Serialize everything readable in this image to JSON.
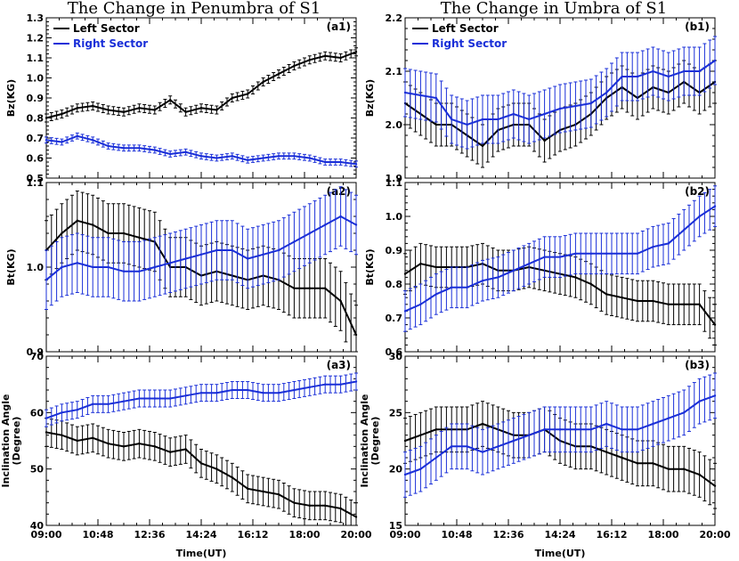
{
  "titles": {
    "left": "The Change in Penumbra of S1",
    "right": "The Change in Umbra of S1"
  },
  "colors": {
    "left_sector": "#000000",
    "right_sector": "#1a2fd8"
  },
  "legend": [
    "Left Sector",
    "Right Sector"
  ],
  "xlabel": "Time(UT)",
  "chart_data": [
    {
      "id": "a1",
      "type": "line",
      "label": "(a1)",
      "ylabel": "Bz(KG)",
      "ylim": [
        0.5,
        1.3
      ],
      "yticks": [
        "0.5",
        "0.6",
        "0.7",
        "0.8",
        "0.9",
        "1.0",
        "1.1",
        "1.2",
        "1.3"
      ],
      "xticks": [],
      "legend": [
        "Left Sector",
        "Right Sector"
      ],
      "series": [
        {
          "name": "Left Sector",
          "color": "#000000",
          "err": 0.02,
          "x": [
            0,
            0.05,
            0.1,
            0.15,
            0.2,
            0.25,
            0.3,
            0.35,
            0.4,
            0.45,
            0.5,
            0.55,
            0.6,
            0.65,
            0.7,
            0.75,
            0.8,
            0.85,
            0.9,
            0.95,
            1.0
          ],
          "y": [
            0.8,
            0.82,
            0.85,
            0.86,
            0.84,
            0.83,
            0.85,
            0.84,
            0.89,
            0.83,
            0.85,
            0.84,
            0.9,
            0.92,
            0.98,
            1.02,
            1.06,
            1.09,
            1.11,
            1.1,
            1.13
          ]
        },
        {
          "name": "Right Sector",
          "color": "#1a2fd8",
          "err": 0.015,
          "x": [
            0,
            0.05,
            0.1,
            0.15,
            0.2,
            0.25,
            0.3,
            0.35,
            0.4,
            0.45,
            0.5,
            0.55,
            0.6,
            0.65,
            0.7,
            0.75,
            0.8,
            0.85,
            0.9,
            0.95,
            1.0
          ],
          "y": [
            0.69,
            0.68,
            0.71,
            0.69,
            0.66,
            0.65,
            0.65,
            0.64,
            0.62,
            0.63,
            0.61,
            0.6,
            0.61,
            0.59,
            0.6,
            0.61,
            0.61,
            0.6,
            0.58,
            0.58,
            0.57
          ]
        }
      ]
    },
    {
      "id": "a2",
      "type": "line",
      "label": "(a2)",
      "ylabel": "Bt(KG)",
      "ylim": [
        0.9,
        1.1
      ],
      "yticks": [
        "0.9",
        "1.0",
        "1.1"
      ],
      "xticks": [],
      "series": [
        {
          "name": "Left Sector",
          "color": "#000000",
          "err": 0.035,
          "x": [
            0,
            0.05,
            0.1,
            0.15,
            0.2,
            0.25,
            0.3,
            0.35,
            0.4,
            0.45,
            0.5,
            0.55,
            0.6,
            0.65,
            0.7,
            0.75,
            0.8,
            0.85,
            0.9,
            0.95,
            1.0
          ],
          "y": [
            1.02,
            1.04,
            1.055,
            1.05,
            1.04,
            1.04,
            1.035,
            1.03,
            1.0,
            1.0,
            0.99,
            0.995,
            0.99,
            0.985,
            0.99,
            0.985,
            0.975,
            0.975,
            0.975,
            0.96,
            0.92
          ]
        },
        {
          "name": "Right Sector",
          "color": "#1a2fd8",
          "err": 0.035,
          "x": [
            0,
            0.05,
            0.1,
            0.15,
            0.2,
            0.25,
            0.3,
            0.35,
            0.4,
            0.45,
            0.5,
            0.55,
            0.6,
            0.65,
            0.7,
            0.75,
            0.8,
            0.85,
            0.9,
            0.95,
            1.0
          ],
          "y": [
            0.985,
            1.0,
            1.005,
            1.0,
            1.0,
            0.995,
            0.995,
            1.0,
            1.005,
            1.01,
            1.015,
            1.02,
            1.02,
            1.01,
            1.015,
            1.02,
            1.03,
            1.04,
            1.05,
            1.06,
            1.05
          ]
        }
      ]
    },
    {
      "id": "a3",
      "type": "line",
      "label": "(a3)",
      "ylabel": [
        "Inclination Angle",
        "(Degree)"
      ],
      "ylim": [
        40,
        70
      ],
      "yticks": [
        "40",
        "50",
        "60",
        "70"
      ],
      "xticks": [
        "09:00",
        "10:48",
        "12:36",
        "14:24",
        "16:12",
        "18:00",
        "20:00"
      ],
      "series": [
        {
          "name": "Left Sector",
          "color": "#000000",
          "err": 2.5,
          "x": [
            0,
            0.05,
            0.1,
            0.15,
            0.2,
            0.25,
            0.3,
            0.35,
            0.4,
            0.45,
            0.5,
            0.55,
            0.6,
            0.65,
            0.7,
            0.75,
            0.8,
            0.85,
            0.9,
            0.95,
            1.0
          ],
          "y": [
            56.5,
            56,
            55,
            55.5,
            54.5,
            54,
            54.5,
            54,
            53,
            53.5,
            51,
            50,
            48.5,
            46.5,
            46,
            45.5,
            44,
            43.5,
            43.5,
            43,
            41.5
          ]
        },
        {
          "name": "Right Sector",
          "color": "#1a2fd8",
          "err": 1.5,
          "x": [
            0,
            0.05,
            0.1,
            0.15,
            0.2,
            0.25,
            0.3,
            0.35,
            0.4,
            0.45,
            0.5,
            0.55,
            0.6,
            0.65,
            0.7,
            0.75,
            0.8,
            0.85,
            0.9,
            0.95,
            1.0
          ],
          "y": [
            59,
            60,
            60.5,
            61.5,
            61.5,
            62,
            62.5,
            62.5,
            62.5,
            63,
            63.5,
            63.5,
            64,
            64,
            63.5,
            63.5,
            64,
            64.5,
            65,
            65,
            65.5
          ]
        }
      ]
    },
    {
      "id": "b1",
      "type": "line",
      "label": "(b1)",
      "ylabel": "Bz(KG)",
      "ylim": [
        1.9,
        2.2
      ],
      "yticks": [
        "1.9",
        "2.0",
        "2.1",
        "2.2"
      ],
      "xticks": [],
      "legend": [
        "Left Sector",
        "Right Sector"
      ],
      "series": [
        {
          "name": "Left Sector",
          "color": "#000000",
          "err": 0.04,
          "x": [
            0,
            0.05,
            0.1,
            0.15,
            0.2,
            0.25,
            0.3,
            0.35,
            0.4,
            0.45,
            0.5,
            0.55,
            0.6,
            0.65,
            0.7,
            0.75,
            0.8,
            0.85,
            0.9,
            0.95,
            1.0
          ],
          "y": [
            2.04,
            2.02,
            2.0,
            2.0,
            1.98,
            1.96,
            1.99,
            2.0,
            2.0,
            1.97,
            1.99,
            2.0,
            2.02,
            2.05,
            2.07,
            2.05,
            2.07,
            2.06,
            2.08,
            2.06,
            2.08
          ]
        },
        {
          "name": "Right Sector",
          "color": "#1a2fd8",
          "err": 0.045,
          "x": [
            0,
            0.05,
            0.1,
            0.15,
            0.2,
            0.25,
            0.3,
            0.35,
            0.4,
            0.45,
            0.5,
            0.55,
            0.6,
            0.65,
            0.7,
            0.75,
            0.8,
            0.85,
            0.9,
            0.95,
            1.0
          ],
          "y": [
            2.06,
            2.055,
            2.05,
            2.01,
            2.0,
            2.01,
            2.01,
            2.02,
            2.01,
            2.02,
            2.03,
            2.035,
            2.04,
            2.06,
            2.09,
            2.09,
            2.1,
            2.09,
            2.1,
            2.1,
            2.12
          ]
        }
      ]
    },
    {
      "id": "b2",
      "type": "line",
      "label": "(b2)",
      "ylabel": "Bt(KG)",
      "ylim": [
        0.6,
        1.1
      ],
      "yticks": [
        "0.6",
        "0.7",
        "0.8",
        "0.9",
        "1.0",
        "1.1"
      ],
      "xticks": [],
      "series": [
        {
          "name": "Left Sector",
          "color": "#000000",
          "err": 0.06,
          "x": [
            0,
            0.05,
            0.1,
            0.15,
            0.2,
            0.25,
            0.3,
            0.35,
            0.4,
            0.45,
            0.5,
            0.55,
            0.6,
            0.65,
            0.7,
            0.75,
            0.8,
            0.85,
            0.9,
            0.95,
            1.0
          ],
          "y": [
            0.83,
            0.86,
            0.85,
            0.85,
            0.85,
            0.86,
            0.84,
            0.84,
            0.85,
            0.84,
            0.83,
            0.82,
            0.8,
            0.77,
            0.76,
            0.75,
            0.75,
            0.74,
            0.74,
            0.74,
            0.68
          ]
        },
        {
          "name": "Right Sector",
          "color": "#1a2fd8",
          "err": 0.06,
          "x": [
            0,
            0.05,
            0.1,
            0.15,
            0.2,
            0.25,
            0.3,
            0.35,
            0.4,
            0.45,
            0.5,
            0.55,
            0.6,
            0.65,
            0.7,
            0.75,
            0.8,
            0.85,
            0.9,
            0.95,
            1.0
          ],
          "y": [
            0.72,
            0.74,
            0.77,
            0.79,
            0.79,
            0.81,
            0.82,
            0.84,
            0.86,
            0.88,
            0.88,
            0.89,
            0.89,
            0.89,
            0.89,
            0.89,
            0.91,
            0.92,
            0.96,
            1.0,
            1.03
          ]
        }
      ]
    },
    {
      "id": "b3",
      "type": "line",
      "label": "(b3)",
      "ylabel": [
        "Inclination Angle",
        "(Degree)"
      ],
      "ylim": [
        15,
        30
      ],
      "yticks": [
        "15",
        "20",
        "25",
        "30"
      ],
      "xticks": [
        "09:00",
        "10:48",
        "12:36",
        "14:24",
        "16:12",
        "18:00",
        "20:00"
      ],
      "series": [
        {
          "name": "Left Sector",
          "color": "#000000",
          "err": 2.0,
          "x": [
            0,
            0.05,
            0.1,
            0.15,
            0.2,
            0.25,
            0.3,
            0.35,
            0.4,
            0.45,
            0.5,
            0.55,
            0.6,
            0.65,
            0.7,
            0.75,
            0.8,
            0.85,
            0.9,
            0.95,
            1.0
          ],
          "y": [
            22.5,
            23,
            23.5,
            23.5,
            23.5,
            24,
            23.5,
            23,
            23,
            23.5,
            22.5,
            22,
            22,
            21.5,
            21,
            20.5,
            20.5,
            20,
            20,
            19.5,
            18.5
          ]
        },
        {
          "name": "Right Sector",
          "color": "#1a2fd8",
          "err": 2.0,
          "x": [
            0,
            0.05,
            0.1,
            0.15,
            0.2,
            0.25,
            0.3,
            0.35,
            0.4,
            0.45,
            0.5,
            0.55,
            0.6,
            0.65,
            0.7,
            0.75,
            0.8,
            0.85,
            0.9,
            0.95,
            1.0
          ],
          "y": [
            19.5,
            20,
            21,
            22,
            22,
            21.5,
            22,
            22.5,
            23,
            23.5,
            23.5,
            23.5,
            23.5,
            24,
            23.5,
            23.5,
            24,
            24.5,
            25,
            26,
            26.5
          ]
        }
      ]
    }
  ]
}
